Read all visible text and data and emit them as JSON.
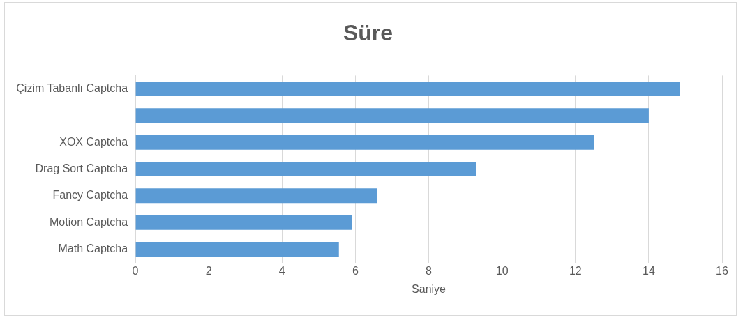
{
  "chart_data": {
    "type": "bar",
    "orientation": "horizontal",
    "title": "Süre",
    "xlabel": "Saniye",
    "categories": [
      "Çizim Tabanlı Captcha",
      null,
      "XOX Captcha",
      "Drag Sort Captcha",
      "Fancy Captcha",
      "Motion Captcha",
      "Math Captcha"
    ],
    "values": [
      14.85,
      14.0,
      12.5,
      9.3,
      6.6,
      5.9,
      5.55
    ],
    "color": "#5b9bd5",
    "xlim": [
      0,
      16
    ],
    "xticks": [
      0,
      2,
      4,
      6,
      8,
      10,
      12,
      14,
      16
    ],
    "grid": "x"
  }
}
